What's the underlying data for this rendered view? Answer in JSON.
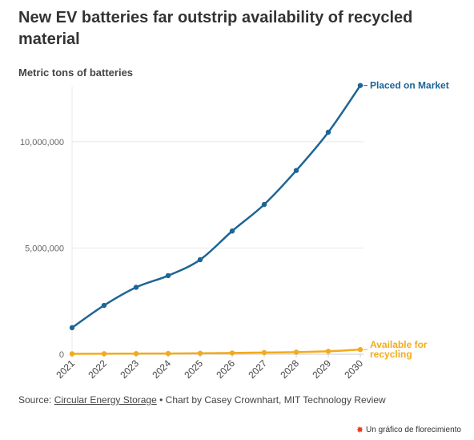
{
  "header": {
    "title": "New EV batteries far outstrip availability of recycled material",
    "units_label": "Metric tons of batteries"
  },
  "footer": {
    "source_prefix": "Source:",
    "source_link": "Circular Energy Storage",
    "separator": "•",
    "credit": "Chart by Casey Crownhart, MIT Technology Review",
    "flourish_badge": "Un gráfico de florecimiento",
    "flourish_icon": "flourish-asterisk-icon"
  },
  "chart_data": {
    "type": "line",
    "x": [
      "2021",
      "2022",
      "2023",
      "2024",
      "2025",
      "2026",
      "2027",
      "2028",
      "2029",
      "2030"
    ],
    "ylim": [
      0,
      12600000
    ],
    "y_ticks": [
      {
        "value": 0,
        "label": "0"
      },
      {
        "value": 5000000,
        "label": "5,000,000"
      },
      {
        "value": 10000000,
        "label": "10,000,000"
      }
    ],
    "grid": true,
    "series": [
      {
        "name": "Placed on Market",
        "color": "#1d6596",
        "values": [
          1250000,
          2300000,
          3150000,
          3700000,
          4450000,
          5800000,
          7050000,
          8650000,
          10450000,
          12650000
        ]
      },
      {
        "name": "Available for recycling",
        "color": "#f2ab1c",
        "values": [
          20000,
          25000,
          30000,
          35000,
          45000,
          60000,
          80000,
          100000,
          140000,
          220000
        ]
      }
    ]
  }
}
